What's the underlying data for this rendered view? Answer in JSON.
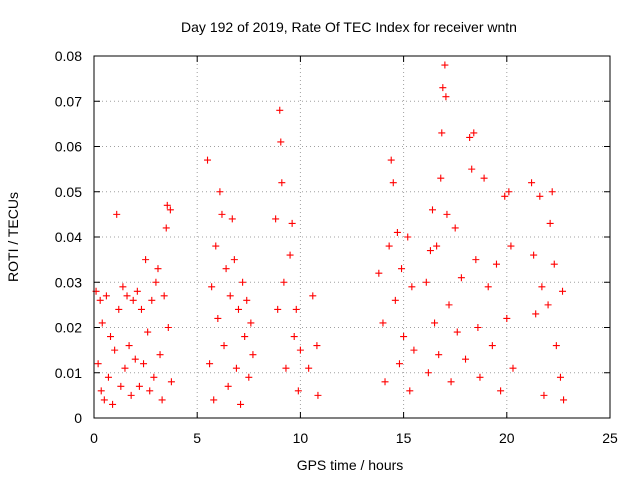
{
  "chart_data": {
    "type": "scatter",
    "title": "Day 192 of 2019, Rate Of TEC Index for receiver wntn",
    "xlabel": "GPS time / hours",
    "ylabel": "ROTI / TECUs",
    "xlim": [
      0,
      25
    ],
    "ylim": [
      0,
      0.08
    ],
    "xticks": [
      0,
      5,
      10,
      15,
      20,
      25
    ],
    "xtick_labels": [
      "0",
      "5",
      "10",
      "15",
      "20",
      "25"
    ],
    "yticks": [
      0,
      0.01,
      0.02,
      0.03,
      0.04,
      0.05,
      0.06,
      0.07,
      0.08
    ],
    "ytick_labels": [
      "0",
      "0.01",
      "0.02",
      "0.03",
      "0.04",
      "0.05",
      "0.06",
      "0.07",
      "0.08"
    ],
    "grid": true,
    "marker": "+",
    "color": "#ff0000",
    "series": [
      {
        "name": "ROTI",
        "points": [
          [
            0.1,
            0.028
          ],
          [
            0.2,
            0.012
          ],
          [
            0.3,
            0.026
          ],
          [
            0.35,
            0.006
          ],
          [
            0.4,
            0.021
          ],
          [
            0.5,
            0.004
          ],
          [
            0.6,
            0.027
          ],
          [
            0.7,
            0.009
          ],
          [
            0.8,
            0.018
          ],
          [
            0.9,
            0.003
          ],
          [
            1.0,
            0.015
          ],
          [
            1.1,
            0.045
          ],
          [
            1.2,
            0.024
          ],
          [
            1.3,
            0.007
          ],
          [
            1.4,
            0.029
          ],
          [
            1.5,
            0.011
          ],
          [
            1.6,
            0.027
          ],
          [
            1.7,
            0.016
          ],
          [
            1.8,
            0.005
          ],
          [
            1.9,
            0.026
          ],
          [
            2.0,
            0.013
          ],
          [
            2.1,
            0.028
          ],
          [
            2.2,
            0.007
          ],
          [
            2.3,
            0.024
          ],
          [
            2.4,
            0.012
          ],
          [
            2.5,
            0.035
          ],
          [
            2.6,
            0.019
          ],
          [
            2.7,
            0.006
          ],
          [
            2.8,
            0.026
          ],
          [
            2.9,
            0.009
          ],
          [
            3.0,
            0.03
          ],
          [
            3.1,
            0.033
          ],
          [
            3.2,
            0.014
          ],
          [
            3.3,
            0.004
          ],
          [
            3.4,
            0.027
          ],
          [
            3.5,
            0.042
          ],
          [
            3.55,
            0.047
          ],
          [
            3.6,
            0.02
          ],
          [
            3.7,
            0.046
          ],
          [
            3.75,
            0.008
          ],
          [
            5.5,
            0.057
          ],
          [
            5.6,
            0.012
          ],
          [
            5.7,
            0.029
          ],
          [
            5.8,
            0.004
          ],
          [
            5.9,
            0.038
          ],
          [
            6.0,
            0.022
          ],
          [
            6.1,
            0.05
          ],
          [
            6.2,
            0.045
          ],
          [
            6.3,
            0.016
          ],
          [
            6.4,
            0.033
          ],
          [
            6.5,
            0.007
          ],
          [
            6.6,
            0.027
          ],
          [
            6.7,
            0.044
          ],
          [
            6.8,
            0.035
          ],
          [
            6.9,
            0.011
          ],
          [
            7.0,
            0.024
          ],
          [
            7.1,
            0.003
          ],
          [
            7.2,
            0.03
          ],
          [
            7.3,
            0.018
          ],
          [
            7.4,
            0.026
          ],
          [
            7.5,
            0.009
          ],
          [
            7.6,
            0.021
          ],
          [
            7.7,
            0.014
          ],
          [
            8.8,
            0.044
          ],
          [
            8.9,
            0.024
          ],
          [
            9.0,
            0.068
          ],
          [
            9.05,
            0.061
          ],
          [
            9.1,
            0.052
          ],
          [
            9.2,
            0.03
          ],
          [
            9.3,
            0.011
          ],
          [
            9.5,
            0.036
          ],
          [
            9.6,
            0.043
          ],
          [
            9.7,
            0.018
          ],
          [
            9.8,
            0.024
          ],
          [
            9.9,
            0.006
          ],
          [
            10.0,
            0.015
          ],
          [
            10.4,
            0.011
          ],
          [
            10.6,
            0.027
          ],
          [
            10.8,
            0.016
          ],
          [
            10.85,
            0.005
          ],
          [
            13.8,
            0.032
          ],
          [
            14.0,
            0.021
          ],
          [
            14.1,
            0.008
          ],
          [
            14.3,
            0.038
          ],
          [
            14.4,
            0.057
          ],
          [
            14.5,
            0.052
          ],
          [
            14.6,
            0.026
          ],
          [
            14.7,
            0.041
          ],
          [
            14.8,
            0.012
          ],
          [
            14.9,
            0.033
          ],
          [
            15.0,
            0.018
          ],
          [
            15.2,
            0.04
          ],
          [
            15.3,
            0.006
          ],
          [
            15.4,
            0.029
          ],
          [
            15.5,
            0.015
          ],
          [
            16.1,
            0.03
          ],
          [
            16.2,
            0.01
          ],
          [
            16.3,
            0.037
          ],
          [
            16.4,
            0.046
          ],
          [
            16.5,
            0.021
          ],
          [
            16.6,
            0.038
          ],
          [
            16.7,
            0.014
          ],
          [
            16.8,
            0.053
          ],
          [
            16.85,
            0.063
          ],
          [
            16.9,
            0.073
          ],
          [
            17.0,
            0.078
          ],
          [
            17.05,
            0.071
          ],
          [
            17.1,
            0.045
          ],
          [
            17.2,
            0.025
          ],
          [
            17.3,
            0.008
          ],
          [
            17.5,
            0.042
          ],
          [
            17.6,
            0.019
          ],
          [
            17.8,
            0.031
          ],
          [
            18.0,
            0.013
          ],
          [
            18.2,
            0.062
          ],
          [
            18.3,
            0.055
          ],
          [
            18.4,
            0.063
          ],
          [
            18.5,
            0.035
          ],
          [
            18.6,
            0.02
          ],
          [
            18.7,
            0.009
          ],
          [
            18.9,
            0.053
          ],
          [
            19.1,
            0.029
          ],
          [
            19.3,
            0.016
          ],
          [
            19.5,
            0.034
          ],
          [
            19.7,
            0.006
          ],
          [
            19.9,
            0.049
          ],
          [
            20.0,
            0.022
          ],
          [
            20.1,
            0.05
          ],
          [
            20.2,
            0.038
          ],
          [
            20.3,
            0.011
          ],
          [
            21.2,
            0.052
          ],
          [
            21.3,
            0.036
          ],
          [
            21.4,
            0.023
          ],
          [
            21.6,
            0.049
          ],
          [
            21.7,
            0.029
          ],
          [
            21.8,
            0.005
          ],
          [
            22.0,
            0.025
          ],
          [
            22.1,
            0.043
          ],
          [
            22.2,
            0.05
          ],
          [
            22.3,
            0.034
          ],
          [
            22.4,
            0.016
          ],
          [
            22.6,
            0.009
          ],
          [
            22.7,
            0.028
          ],
          [
            22.75,
            0.004
          ]
        ]
      }
    ]
  }
}
